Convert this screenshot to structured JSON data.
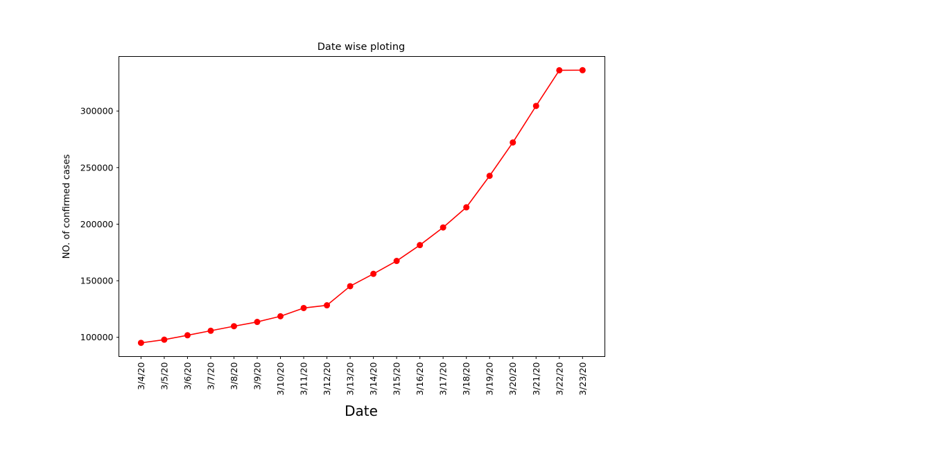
{
  "chart_data": {
    "type": "line",
    "title": "Date wise ploting",
    "xlabel": "Date",
    "ylabel": "NO. of confirmed cases",
    "categories": [
      "3/4/20",
      "3/5/20",
      "3/6/20",
      "3/7/20",
      "3/8/20",
      "3/9/20",
      "3/10/20",
      "3/11/20",
      "3/12/20",
      "3/13/20",
      "3/14/20",
      "3/15/20",
      "3/16/20",
      "3/17/20",
      "3/18/20",
      "3/19/20",
      "3/20/20",
      "3/21/20",
      "3/22/20",
      "3/23/20"
    ],
    "series": [
      {
        "color": "#ff0000",
        "marker": "circle",
        "values": [
          95100,
          97900,
          101800,
          105800,
          109800,
          113600,
          118600,
          125900,
          128300,
          145200,
          156100,
          167500,
          181500,
          197100,
          214900,
          242700,
          272200,
          304500,
          336000,
          336100
        ]
      }
    ],
    "yticks": [
      100000,
      150000,
      200000,
      250000,
      300000
    ],
    "ylim": [
      83000,
      348200
    ],
    "grid": false,
    "legend": "none"
  }
}
